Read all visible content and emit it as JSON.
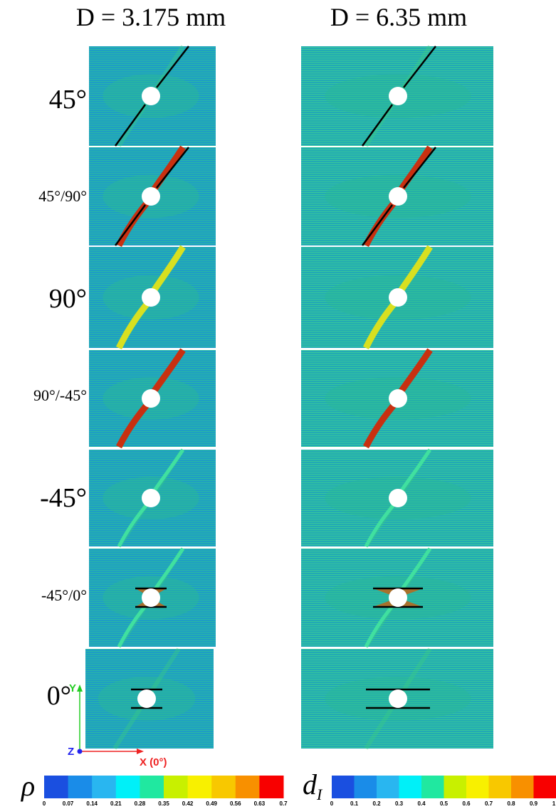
{
  "columns": [
    "D = 3.175 mm",
    "D = 6.35 mm"
  ],
  "rows": [
    "45°",
    "45°/90°",
    "90°",
    "90°/-45°",
    "-45°",
    "-45°/0°",
    "0°"
  ],
  "axes": {
    "y": "Y",
    "z": "Z",
    "x": "X (0°)"
  },
  "colorbars": [
    {
      "symbol": "ρ",
      "ticks": [
        0,
        0.07,
        0.14,
        0.21,
        0.28,
        0.35,
        0.42,
        0.49,
        0.56,
        0.63,
        0.7
      ]
    },
    {
      "symbol": "d",
      "subscript": "I",
      "ticks": [
        0,
        0.1,
        0.2,
        0.3,
        0.4,
        0.5,
        0.6,
        0.7,
        0.8,
        0.9,
        1
      ]
    }
  ],
  "colors": [
    "#1a4fe0",
    "#1a8ce8",
    "#29b6f0",
    "#00f0f8",
    "#20e8a0",
    "#c8f000",
    "#f8f000",
    "#f8c800",
    "#f89000",
    "#f80000"
  ]
}
